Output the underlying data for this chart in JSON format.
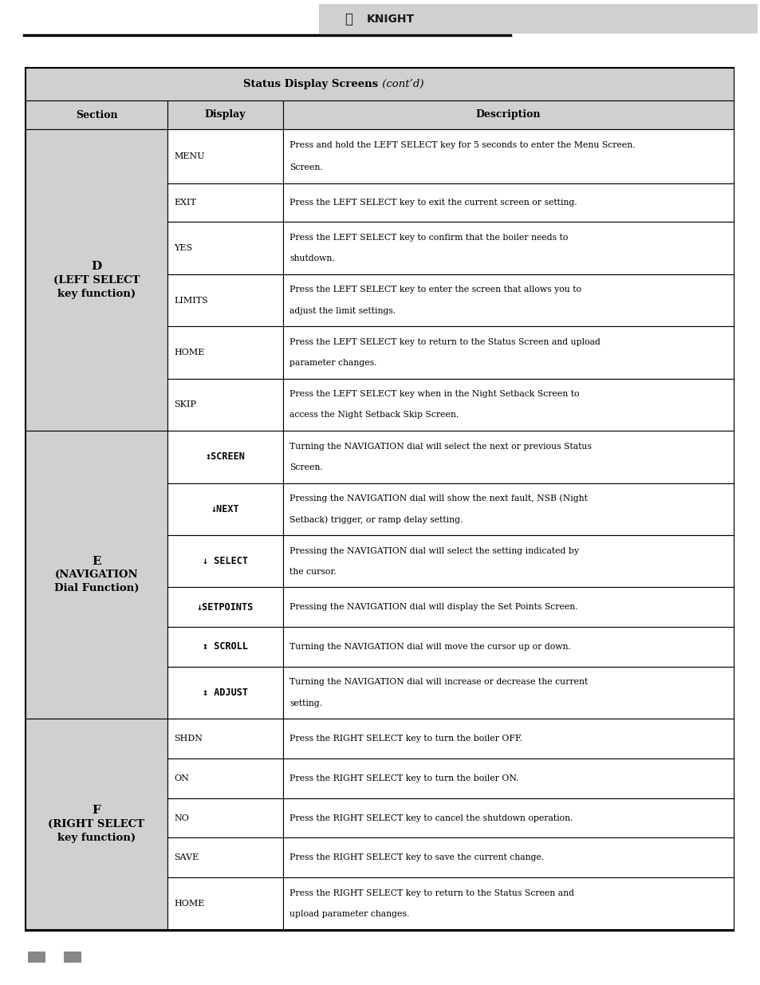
{
  "sections": [
    {
      "label_lines": [
        "D",
        "(LEFT SELECT",
        "key function)"
      ],
      "label_bold": [
        true,
        true,
        true
      ],
      "rows": [
        {
          "display": "MENU",
          "lcd": false,
          "desc": "Press and hold the LEFT SELECT key for 5 seconds to enter the Menu Screen.",
          "two_line": true,
          "desc2": "Screen."
        },
        {
          "display": "EXIT",
          "lcd": false,
          "desc": "Press the LEFT SELECT key to exit the current screen or setting.",
          "two_line": false
        },
        {
          "display": "YES",
          "lcd": false,
          "desc": "Press the LEFT SELECT key to confirm that the boiler needs to",
          "two_line": true,
          "desc2": "shutdown."
        },
        {
          "display": "LIMITS",
          "lcd": false,
          "desc": "Press the LEFT SELECT key to enter the screen that allows you to",
          "two_line": true,
          "desc2": "adjust the limit settings."
        },
        {
          "display": "HOME",
          "lcd": false,
          "desc": "Press the LEFT SELECT key to return to the Status Screen and upload",
          "two_line": true,
          "desc2": "parameter changes."
        },
        {
          "display": "SKIP",
          "lcd": false,
          "desc": "Press the LEFT SELECT key when in the Night Setback Screen to",
          "two_line": true,
          "desc2": "access the Night Setback Skip Screen."
        }
      ]
    },
    {
      "label_lines": [
        "E",
        "(NAVIGATION",
        "Dial Function)"
      ],
      "label_bold": [
        true,
        true,
        true
      ],
      "rows": [
        {
          "display": "↕SCREEN",
          "lcd": true,
          "desc": "Turning the NAVIGATION dial will select the next or previous Status",
          "two_line": true,
          "desc2": "Screen."
        },
        {
          "display": "↓NEXT",
          "lcd": true,
          "desc": "Pressing the NAVIGATION dial will show the next fault, NSB (Night",
          "two_line": true,
          "desc2": "Setback) trigger, or ramp delay setting."
        },
        {
          "display": "↓ SELECT",
          "lcd": true,
          "desc": "Pressing the NAVIGATION dial will select the setting indicated by",
          "two_line": true,
          "desc2": "the cursor."
        },
        {
          "display": "↓SETPOINTS",
          "lcd": true,
          "desc": "Pressing the NAVIGATION dial will display the Set Points Screen.",
          "two_line": false
        },
        {
          "display": "↕ SCROLL",
          "lcd": true,
          "desc": "Turning the NAVIGATION dial will move the cursor up or down.",
          "two_line": false
        },
        {
          "display": "↕ ADJUST",
          "lcd": true,
          "desc": "Turning the NAVIGATION dial will increase or decrease the current",
          "two_line": true,
          "desc2": "setting."
        }
      ]
    },
    {
      "label_lines": [
        "F",
        "(RIGHT SELECT",
        "key function)"
      ],
      "label_bold": [
        true,
        true,
        true
      ],
      "rows": [
        {
          "display": "SHDN",
          "lcd": false,
          "desc": "Press the RIGHT SELECT key to turn the boiler OFF.",
          "two_line": false
        },
        {
          "display": "ON",
          "lcd": false,
          "desc": "Press the RIGHT SELECT key to turn the boiler ON.",
          "two_line": false
        },
        {
          "display": "NO",
          "lcd": false,
          "desc": "Press the RIGHT SELECT key to cancel the shutdown operation.",
          "two_line": false
        },
        {
          "display": "SAVE",
          "lcd": false,
          "desc": "Press the RIGHT SELECT key to save the current change.",
          "two_line": false
        },
        {
          "display": "HOME",
          "lcd": false,
          "desc": "Press the RIGHT SELECT key to return to the Status Screen and",
          "two_line": true,
          "desc2": "upload parameter changes."
        }
      ]
    }
  ],
  "page_bg": "#ffffff",
  "header_bg": "#d0d0d0",
  "section_bg": "#d0d0d0",
  "cell_bg": "#ffffff",
  "border_color": "#000000",
  "logo_banner_color": "#d0d0d0",
  "footer_sq_color": "#888888"
}
